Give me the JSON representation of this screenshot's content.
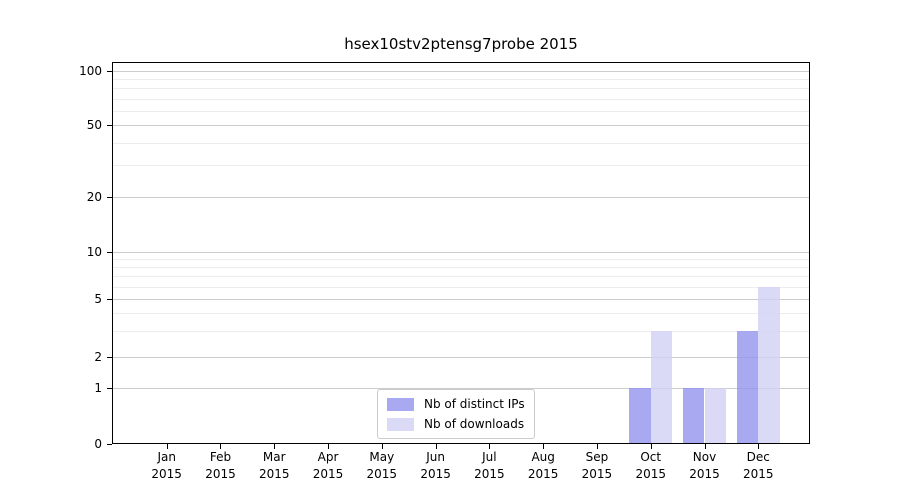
{
  "title": "hsex10stv2ptensg7probe 2015",
  "chart_data": {
    "type": "bar",
    "title": "hsex10stv2ptensg7probe 2015",
    "categories": [
      "Jan 2015",
      "Feb 2015",
      "Mar 2015",
      "Apr 2015",
      "May 2015",
      "Jun 2015",
      "Jul 2015",
      "Aug 2015",
      "Sep 2015",
      "Oct 2015",
      "Nov 2015",
      "Dec 2015"
    ],
    "series": [
      {
        "name": "Nb of distinct IPs",
        "color": "#a9a9f1",
        "fill": "rgba(148,148,238,0.8)",
        "values": [
          0,
          0,
          0,
          0,
          0,
          0,
          0,
          0,
          0,
          1,
          1,
          3
        ]
      },
      {
        "name": "Nb of downloads",
        "color": "#dadaf6",
        "fill": "rgba(209,209,244,0.8)",
        "values": [
          0,
          0,
          0,
          0,
          0,
          0,
          0,
          0,
          0,
          3,
          1,
          6
        ]
      }
    ],
    "xlabel": "",
    "ylabel": "",
    "yaxis": {
      "ticks": [
        0,
        1,
        2,
        5,
        10,
        20,
        50,
        100
      ],
      "minor_ticks": [
        3,
        4,
        6,
        7,
        8,
        9,
        30,
        40,
        60,
        70,
        80,
        90
      ],
      "scale": "log above 1, linear 0-1",
      "range": [
        0,
        112
      ]
    },
    "legend": {
      "position": "lower center"
    },
    "grid": {
      "on": true,
      "major_color": "#cccccc",
      "minor_color": "#ededed"
    }
  },
  "colors": {
    "background": "#ffffff",
    "axis": "#000000",
    "legend_border": "#cccccc"
  }
}
